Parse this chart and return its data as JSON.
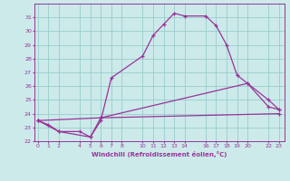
{
  "xlabel": "Windchill (Refroidissement éolien,°C)",
  "bg_color": "#cceaea",
  "line_color": "#993399",
  "grid_color": "#99cccc",
  "line1_x": [
    0,
    1,
    2,
    4,
    5,
    6,
    7,
    10,
    11,
    12,
    13,
    14,
    16,
    17,
    18,
    19,
    20,
    22,
    23
  ],
  "line1_y": [
    23.5,
    23.2,
    22.7,
    22.7,
    22.3,
    23.5,
    26.6,
    28.2,
    29.7,
    30.5,
    31.3,
    31.1,
    31.1,
    30.4,
    29.0,
    26.8,
    26.2,
    24.5,
    24.3
  ],
  "line2_x": [
    0,
    2,
    5,
    6,
    20,
    22,
    23
  ],
  "line2_y": [
    23.5,
    22.7,
    22.3,
    23.7,
    26.2,
    25.0,
    24.3
  ],
  "line3_x": [
    0,
    6,
    23
  ],
  "line3_y": [
    23.5,
    23.7,
    24.0
  ],
  "ylim": [
    22,
    32
  ],
  "xlim": [
    -0.3,
    23.5
  ],
  "yticks": [
    22,
    23,
    24,
    25,
    26,
    27,
    28,
    29,
    30,
    31
  ],
  "xticks": [
    0,
    1,
    2,
    4,
    5,
    6,
    7,
    8,
    10,
    11,
    12,
    13,
    14,
    16,
    17,
    18,
    19,
    20,
    22,
    23
  ],
  "figsize": [
    3.2,
    2.0
  ],
  "dpi": 100
}
